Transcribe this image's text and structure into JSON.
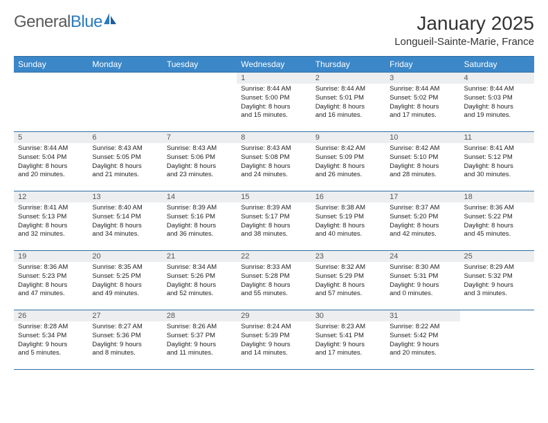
{
  "brand": {
    "part1": "General",
    "part2": "Blue"
  },
  "title": "January 2025",
  "location": "Longueil-Sainte-Marie, France",
  "colors": {
    "header_bg": "#3b87c8",
    "header_border": "#2e6da4",
    "daynum_bg": "#eceef0",
    "text": "#222222",
    "logo_blue": "#2b7bbf",
    "logo_gray": "#5a5a5a"
  },
  "typography": {
    "title_fontsize": 28,
    "location_fontsize": 15,
    "dayheader_fontsize": 12,
    "daynum_fontsize": 11,
    "body_fontsize": 9.5
  },
  "weekdays": [
    "Sunday",
    "Monday",
    "Tuesday",
    "Wednesday",
    "Thursday",
    "Friday",
    "Saturday"
  ],
  "weeks": [
    [
      {
        "day": "",
        "lines": []
      },
      {
        "day": "",
        "lines": []
      },
      {
        "day": "",
        "lines": []
      },
      {
        "day": "1",
        "lines": [
          "Sunrise: 8:44 AM",
          "Sunset: 5:00 PM",
          "Daylight: 8 hours",
          "and 15 minutes."
        ]
      },
      {
        "day": "2",
        "lines": [
          "Sunrise: 8:44 AM",
          "Sunset: 5:01 PM",
          "Daylight: 8 hours",
          "and 16 minutes."
        ]
      },
      {
        "day": "3",
        "lines": [
          "Sunrise: 8:44 AM",
          "Sunset: 5:02 PM",
          "Daylight: 8 hours",
          "and 17 minutes."
        ]
      },
      {
        "day": "4",
        "lines": [
          "Sunrise: 8:44 AM",
          "Sunset: 5:03 PM",
          "Daylight: 8 hours",
          "and 19 minutes."
        ]
      }
    ],
    [
      {
        "day": "5",
        "lines": [
          "Sunrise: 8:44 AM",
          "Sunset: 5:04 PM",
          "Daylight: 8 hours",
          "and 20 minutes."
        ]
      },
      {
        "day": "6",
        "lines": [
          "Sunrise: 8:43 AM",
          "Sunset: 5:05 PM",
          "Daylight: 8 hours",
          "and 21 minutes."
        ]
      },
      {
        "day": "7",
        "lines": [
          "Sunrise: 8:43 AM",
          "Sunset: 5:06 PM",
          "Daylight: 8 hours",
          "and 23 minutes."
        ]
      },
      {
        "day": "8",
        "lines": [
          "Sunrise: 8:43 AM",
          "Sunset: 5:08 PM",
          "Daylight: 8 hours",
          "and 24 minutes."
        ]
      },
      {
        "day": "9",
        "lines": [
          "Sunrise: 8:42 AM",
          "Sunset: 5:09 PM",
          "Daylight: 8 hours",
          "and 26 minutes."
        ]
      },
      {
        "day": "10",
        "lines": [
          "Sunrise: 8:42 AM",
          "Sunset: 5:10 PM",
          "Daylight: 8 hours",
          "and 28 minutes."
        ]
      },
      {
        "day": "11",
        "lines": [
          "Sunrise: 8:41 AM",
          "Sunset: 5:12 PM",
          "Daylight: 8 hours",
          "and 30 minutes."
        ]
      }
    ],
    [
      {
        "day": "12",
        "lines": [
          "Sunrise: 8:41 AM",
          "Sunset: 5:13 PM",
          "Daylight: 8 hours",
          "and 32 minutes."
        ]
      },
      {
        "day": "13",
        "lines": [
          "Sunrise: 8:40 AM",
          "Sunset: 5:14 PM",
          "Daylight: 8 hours",
          "and 34 minutes."
        ]
      },
      {
        "day": "14",
        "lines": [
          "Sunrise: 8:39 AM",
          "Sunset: 5:16 PM",
          "Daylight: 8 hours",
          "and 36 minutes."
        ]
      },
      {
        "day": "15",
        "lines": [
          "Sunrise: 8:39 AM",
          "Sunset: 5:17 PM",
          "Daylight: 8 hours",
          "and 38 minutes."
        ]
      },
      {
        "day": "16",
        "lines": [
          "Sunrise: 8:38 AM",
          "Sunset: 5:19 PM",
          "Daylight: 8 hours",
          "and 40 minutes."
        ]
      },
      {
        "day": "17",
        "lines": [
          "Sunrise: 8:37 AM",
          "Sunset: 5:20 PM",
          "Daylight: 8 hours",
          "and 42 minutes."
        ]
      },
      {
        "day": "18",
        "lines": [
          "Sunrise: 8:36 AM",
          "Sunset: 5:22 PM",
          "Daylight: 8 hours",
          "and 45 minutes."
        ]
      }
    ],
    [
      {
        "day": "19",
        "lines": [
          "Sunrise: 8:36 AM",
          "Sunset: 5:23 PM",
          "Daylight: 8 hours",
          "and 47 minutes."
        ]
      },
      {
        "day": "20",
        "lines": [
          "Sunrise: 8:35 AM",
          "Sunset: 5:25 PM",
          "Daylight: 8 hours",
          "and 49 minutes."
        ]
      },
      {
        "day": "21",
        "lines": [
          "Sunrise: 8:34 AM",
          "Sunset: 5:26 PM",
          "Daylight: 8 hours",
          "and 52 minutes."
        ]
      },
      {
        "day": "22",
        "lines": [
          "Sunrise: 8:33 AM",
          "Sunset: 5:28 PM",
          "Daylight: 8 hours",
          "and 55 minutes."
        ]
      },
      {
        "day": "23",
        "lines": [
          "Sunrise: 8:32 AM",
          "Sunset: 5:29 PM",
          "Daylight: 8 hours",
          "and 57 minutes."
        ]
      },
      {
        "day": "24",
        "lines": [
          "Sunrise: 8:30 AM",
          "Sunset: 5:31 PM",
          "Daylight: 9 hours",
          "and 0 minutes."
        ]
      },
      {
        "day": "25",
        "lines": [
          "Sunrise: 8:29 AM",
          "Sunset: 5:32 PM",
          "Daylight: 9 hours",
          "and 3 minutes."
        ]
      }
    ],
    [
      {
        "day": "26",
        "lines": [
          "Sunrise: 8:28 AM",
          "Sunset: 5:34 PM",
          "Daylight: 9 hours",
          "and 5 minutes."
        ]
      },
      {
        "day": "27",
        "lines": [
          "Sunrise: 8:27 AM",
          "Sunset: 5:36 PM",
          "Daylight: 9 hours",
          "and 8 minutes."
        ]
      },
      {
        "day": "28",
        "lines": [
          "Sunrise: 8:26 AM",
          "Sunset: 5:37 PM",
          "Daylight: 9 hours",
          "and 11 minutes."
        ]
      },
      {
        "day": "29",
        "lines": [
          "Sunrise: 8:24 AM",
          "Sunset: 5:39 PM",
          "Daylight: 9 hours",
          "and 14 minutes."
        ]
      },
      {
        "day": "30",
        "lines": [
          "Sunrise: 8:23 AM",
          "Sunset: 5:41 PM",
          "Daylight: 9 hours",
          "and 17 minutes."
        ]
      },
      {
        "day": "31",
        "lines": [
          "Sunrise: 8:22 AM",
          "Sunset: 5:42 PM",
          "Daylight: 9 hours",
          "and 20 minutes."
        ]
      },
      {
        "day": "",
        "lines": []
      }
    ]
  ]
}
